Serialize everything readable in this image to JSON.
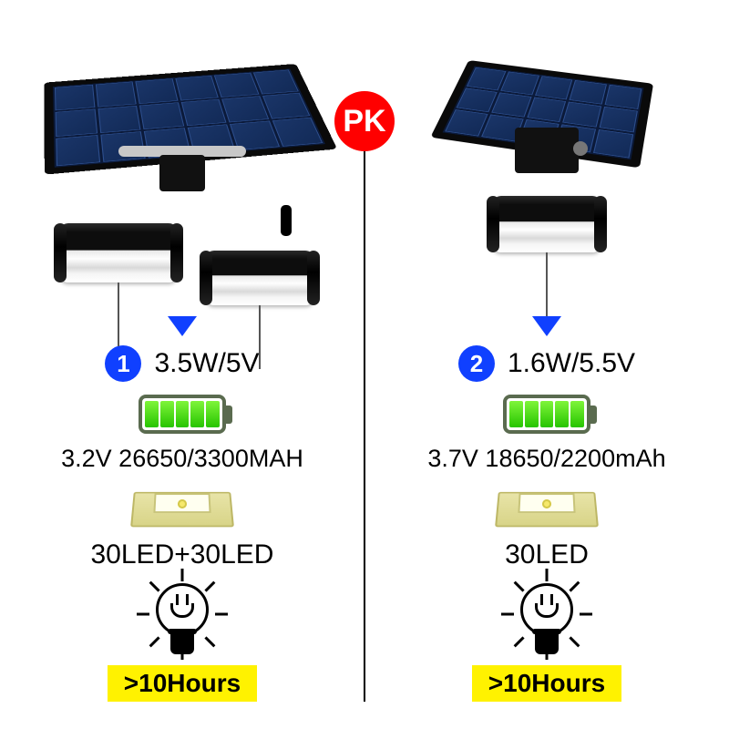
{
  "badge": {
    "label": "PK",
    "bg": "#ff0000",
    "fg": "#ffffff"
  },
  "accent_blue": "#1040ff",
  "panel_colors": {
    "cell": "#1a3568",
    "cell_border": "#2d4f8f",
    "frame": "#0a0a0a"
  },
  "battery": {
    "segments": 5,
    "fill": "#26c400",
    "border": "#5a6b4f"
  },
  "hours_badge": {
    "bg": "#fff200",
    "fg": "#000000"
  },
  "products": [
    {
      "index_label": "1",
      "power": "3.5W/5V",
      "battery_spec": "3.2V 26650/3300MAH",
      "led_spec": "30LED+30LED",
      "runtime": ">10Hours",
      "panel": {
        "cols": 6,
        "rows": 3
      },
      "lamp_count": 2
    },
    {
      "index_label": "2",
      "power": "1.6W/5.5V",
      "battery_spec": "3.7V 18650/2200mAh",
      "led_spec": "30LED",
      "runtime": ">10Hours",
      "panel": {
        "cols": 5,
        "rows": 3
      },
      "lamp_count": 1
    }
  ]
}
